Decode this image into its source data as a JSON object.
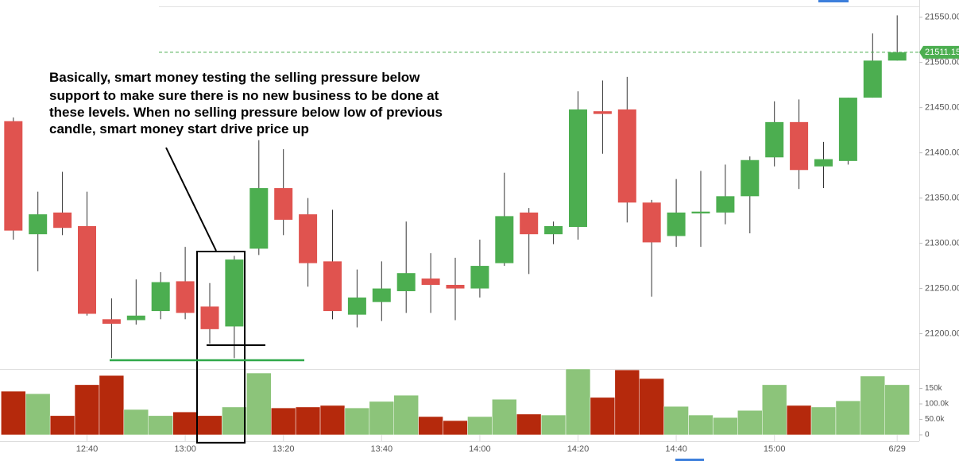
{
  "chart_data": {
    "type": "candlestick",
    "annotation": [
      "Basically, smart money testing the selling pressure below",
      "support to make sure there is no new business to be done at",
      "these levels. When no selling pressure below low of previous",
      "candle, smart money start drive price up"
    ],
    "categories": [
      null,
      null,
      null,
      "12:40",
      null,
      null,
      null,
      "13:00",
      null,
      null,
      null,
      "13:20",
      null,
      null,
      null,
      "13:40",
      null,
      null,
      null,
      "14:00",
      null,
      null,
      null,
      "14:20",
      null,
      null,
      null,
      "14:40",
      null,
      null,
      null,
      "15:00",
      null,
      null,
      null,
      null,
      "6/29"
    ],
    "open": [
      21435,
      21310,
      21334,
      21319,
      21216,
      21215,
      21225,
      21258,
      21230,
      21208,
      21294,
      21361,
      21332,
      21280,
      21221,
      21235,
      21247,
      21261,
      21254,
      21250,
      21278,
      21334,
      21310,
      21318,
      21446,
      21448,
      21345,
      21308,
      21333,
      21334,
      21352,
      21395,
      21434,
      21385,
      21391,
      21461,
      21502
    ],
    "high": [
      21439,
      21357,
      21379,
      21357,
      21239,
      21260,
      21268,
      21296,
      21256,
      21286,
      21414,
      21404,
      21350,
      21337,
      21271,
      21280,
      21324,
      21289,
      21284,
      21304,
      21378,
      21339,
      21324,
      21468,
      21480,
      21484,
      21348,
      21371,
      21380,
      21387,
      21396,
      21457,
      21459,
      21412,
      21461,
      21532,
      21552
    ],
    "low": [
      21304,
      21269,
      21309,
      21220,
      21173,
      21210,
      21216,
      21216,
      21189,
      21173,
      21287,
      21309,
      21252,
      21216,
      21207,
      21214,
      21223,
      21223,
      21215,
      21240,
      21275,
      21266,
      21299,
      21304,
      21399,
      21323,
      21241,
      21296,
      21296,
      21321,
      21311,
      21385,
      21360,
      21361,
      21387,
      21461,
      21502
    ],
    "close": [
      21314,
      21332,
      21317,
      21222,
      21211,
      21220,
      21257,
      21223,
      21205,
      21282,
      21361,
      21326,
      21278,
      21225,
      21240,
      21250,
      21267,
      21254,
      21250,
      21275,
      21330,
      21310,
      21319,
      21448,
      21443,
      21345,
      21301,
      21334,
      21335,
      21352,
      21392,
      21434,
      21381,
      21393,
      21461,
      21502,
      21511.15
    ],
    "up_color": "#4cae50",
    "down_color": "#e0534f",
    "ylim": [
      21161,
      21569
    ],
    "yticks": [
      {
        "value": 21200,
        "label": "21200.00"
      },
      {
        "value": 21250,
        "label": "21250.00"
      },
      {
        "value": 21300,
        "label": "21300.00"
      },
      {
        "value": 21350,
        "label": "21350.00"
      },
      {
        "value": 21400,
        "label": "21400.00"
      },
      {
        "value": 21450,
        "label": "21450.00"
      },
      {
        "value": 21500,
        "label": "21500.00"
      },
      {
        "value": 21550,
        "label": "21550.00"
      }
    ],
    "last_price": {
      "value": 21511.15,
      "label": "21511.15"
    },
    "volume": {
      "values": [
        141000,
        133000,
        62000,
        162000,
        192000,
        82000,
        62000,
        74000,
        62000,
        90000,
        200000,
        87000,
        90000,
        95000,
        87000,
        108000,
        128000,
        59000,
        46000,
        59000,
        115000,
        67000,
        64000,
        213000,
        121000,
        210000,
        182000,
        92000,
        64000,
        56000,
        79000,
        162000,
        95000,
        90000,
        110000,
        190000,
        162000
      ],
      "up_color": "#8cc47a",
      "down_color": "#b5290c",
      "ylim": [
        0,
        213000
      ],
      "yticks": [
        0,
        {
          "value": 50000,
          "label": "50.0k"
        },
        {
          "value": 100000,
          "label": "100.0k"
        },
        {
          "value": 150000,
          "label": "150k"
        }
      ]
    }
  }
}
